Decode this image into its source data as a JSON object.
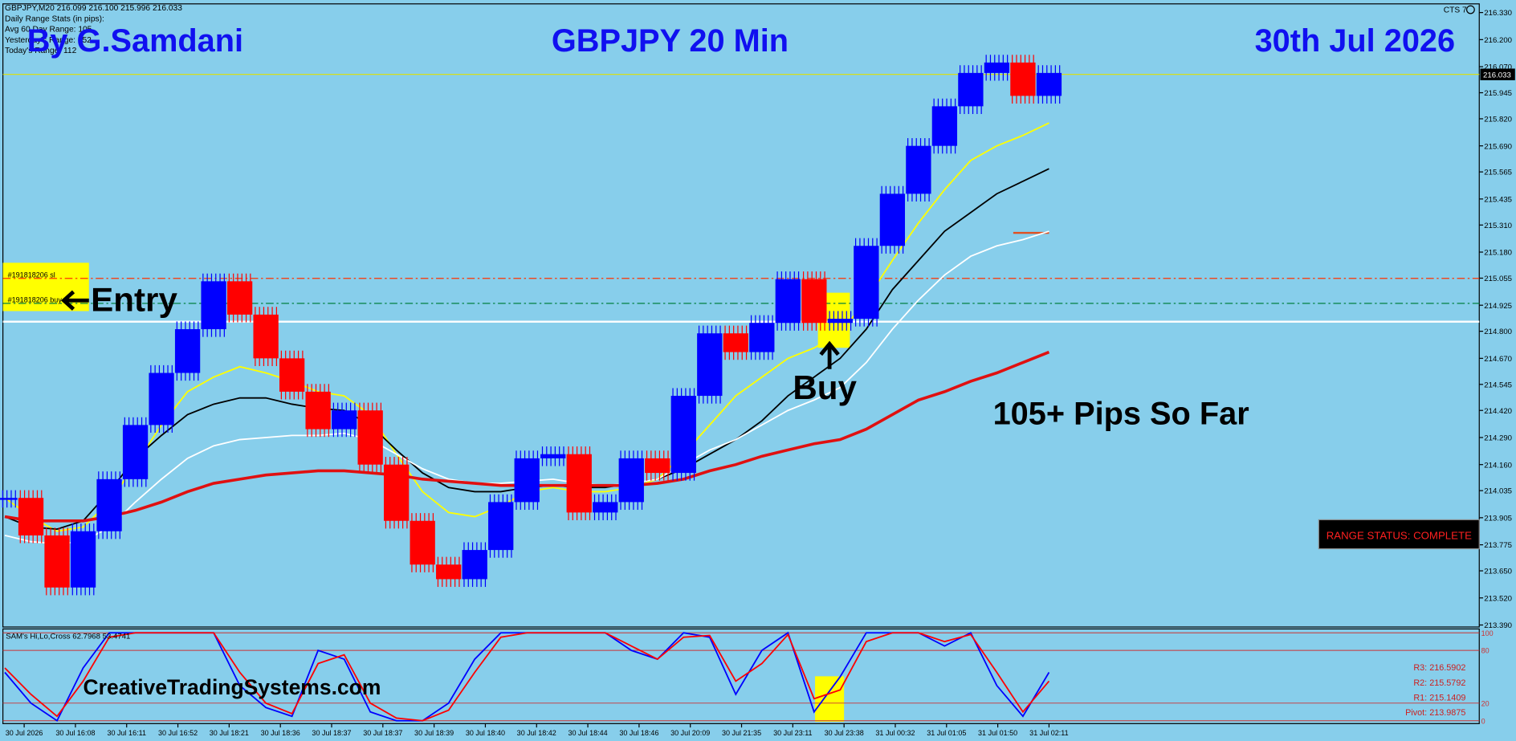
{
  "chart_data": {
    "type": "candlestick",
    "header": "GBPJPY,M20  216.099 216.100 215.996 216.033",
    "info_lines": [
      "Daily Range Stats (in pips):",
      "Avg 60 Day Range: 105",
      "Yesterday's Range: 152",
      "Today's Range: 112"
    ],
    "platform_label": "CTS 7",
    "author": "By G.Samdani",
    "title": "GBPJPY 20 Min",
    "date": "30th Jul 2026",
    "annotations": {
      "entry": "Entry",
      "buy": "Buy",
      "pips": "105+ Pips So Far",
      "website": "CreativeTradingSystems.com",
      "range_status": "RANGE STATUS: COMPLETE",
      "order_sl": "#191818206 sl",
      "order_buy": "#191818206 buy"
    },
    "current_price": 216.033,
    "ylim": [
      213.385,
      216.367
    ],
    "yticks": [
      {
        "value": 213.39,
        "label": "213.390"
      },
      {
        "value": 213.52,
        "label": "213.520"
      },
      {
        "value": 213.65,
        "label": "213.650"
      },
      213.775,
      213.905,
      214.035,
      {
        "value": 214.16,
        "label": "214.160"
      },
      {
        "value": 214.29,
        "label": "214.290"
      },
      {
        "value": 214.42,
        "label": "214.420"
      },
      214.545,
      {
        "value": 214.67,
        "label": "214.670"
      },
      {
        "value": 214.8,
        "label": "214.800"
      },
      214.925,
      215.055,
      {
        "value": 215.18,
        "label": "215.180"
      },
      {
        "value": 215.31,
        "label": "215.310"
      },
      215.435,
      215.565,
      {
        "value": 215.69,
        "label": "215.690"
      },
      {
        "value": 215.82,
        "label": "215.820"
      },
      215.945,
      {
        "value": 216.07,
        "label": "216.070"
      },
      {
        "value": 216.2,
        "label": "216.200"
      },
      {
        "value": 216.33,
        "label": "216.330"
      }
    ],
    "hlines": [
      {
        "value": 215.054,
        "color": "#ff3300",
        "dash": "8 3 2 3"
      },
      {
        "value": 214.934,
        "color": "#008040",
        "dash": "8 3 2 3"
      },
      {
        "value": 214.846,
        "color": "#ffffff",
        "dash": "none"
      }
    ],
    "x_labels": [
      "30 Jul 2026",
      "30 Jul 16:08",
      "30 Jul 16:11",
      "30 Jul 16:52",
      "30 Jul 18:21",
      "30 Jul 18:36",
      "30 Jul 18:37",
      "30 Jul 18:37",
      "30 Jul 18:39",
      "30 Jul 18:40",
      "30 Jul 18:42",
      "30 Jul 18:44",
      "30 Jul 18:46",
      "30 Jul 20:09",
      "30 Jul 21:35",
      "30 Jul 23:11",
      "30 Jul 23:38",
      "31 Jul 00:32",
      "31 Jul 01:05",
      "31 Jul 01:50",
      "31 Jul 02:11"
    ],
    "price": {
      "up_color": "#0000ff",
      "down_color": "#ff0000",
      "values": [
        214.0,
        213.82,
        213.57,
        213.84,
        214.09,
        214.35,
        214.6,
        214.81,
        215.04,
        214.88,
        214.67,
        214.51,
        214.33,
        214.42,
        214.16,
        213.89,
        213.68,
        213.61,
        213.75,
        213.98,
        214.19,
        214.21,
        213.93,
        213.98,
        214.19,
        214.12,
        214.49,
        214.79,
        214.7,
        214.84,
        215.05,
        214.84,
        214.86,
        215.21,
        215.46,
        215.69,
        215.88,
        216.04,
        216.09,
        215.93,
        216.04
      ]
    },
    "series": [
      {
        "color": "#ffff00",
        "width": 1.5,
        "values": [
          214.0,
          213.91,
          213.84,
          213.86,
          213.98,
          214.16,
          214.35,
          214.51,
          214.58,
          214.63,
          214.6,
          214.56,
          214.51,
          214.49,
          214.4,
          214.21,
          214.03,
          213.93,
          213.91,
          213.96,
          214.03,
          214.05,
          214.03,
          214.03,
          214.05,
          214.09,
          214.21,
          214.35,
          214.49,
          214.58,
          214.67,
          214.72,
          214.79,
          214.95,
          215.14,
          215.32,
          215.48,
          215.62,
          215.69,
          215.74,
          215.8
        ]
      },
      {
        "color": "#000000",
        "width": 1.5,
        "values": [
          213.91,
          213.86,
          213.85,
          213.89,
          214.03,
          214.19,
          214.3,
          214.4,
          214.45,
          214.48,
          214.48,
          214.45,
          214.43,
          214.42,
          214.35,
          214.23,
          214.12,
          214.05,
          214.03,
          214.03,
          214.05,
          214.06,
          214.05,
          214.05,
          214.07,
          214.09,
          214.14,
          214.21,
          214.28,
          214.37,
          214.49,
          214.58,
          214.67,
          214.81,
          215.0,
          215.14,
          215.28,
          215.37,
          215.46,
          215.52,
          215.58
        ]
      },
      {
        "color": "#ffffff",
        "width": 1.5,
        "values": [
          213.82,
          213.79,
          213.78,
          213.79,
          213.86,
          213.98,
          214.09,
          214.19,
          214.25,
          214.28,
          214.29,
          214.3,
          214.3,
          214.31,
          214.28,
          214.21,
          214.14,
          214.09,
          214.07,
          214.07,
          214.08,
          214.09,
          214.07,
          214.06,
          214.07,
          214.09,
          214.16,
          214.23,
          214.28,
          214.35,
          214.42,
          214.47,
          214.53,
          214.65,
          214.81,
          214.95,
          215.07,
          215.16,
          215.21,
          215.24,
          215.28
        ]
      },
      {
        "color": "#e01010",
        "width": 3,
        "values": [
          213.91,
          213.89,
          213.89,
          213.89,
          213.91,
          213.94,
          213.98,
          214.03,
          214.07,
          214.09,
          214.11,
          214.12,
          214.13,
          214.13,
          214.12,
          214.11,
          214.09,
          214.08,
          214.07,
          214.06,
          214.06,
          214.06,
          214.06,
          214.06,
          214.06,
          214.07,
          214.09,
          214.13,
          214.16,
          214.2,
          214.23,
          214.26,
          214.28,
          214.33,
          214.4,
          214.47,
          214.51,
          214.56,
          214.6,
          214.65,
          214.7
        ]
      }
    ],
    "oscillator": {
      "title": "SAM's Hi,Lo,Cross 62.7968 53.4741",
      "ylim": [
        0,
        100
      ],
      "yticks": [
        0,
        20,
        80,
        100
      ],
      "level_color": "#cc3333",
      "pivots": [
        "R3: 216.5902",
        "R2: 215.5792",
        "R1: 215.1409",
        "Pivot: 213.9875"
      ],
      "series": [
        {
          "color": "#0000ff",
          "values": [
            55,
            20,
            0,
            60,
            100,
            100,
            100,
            100,
            100,
            40,
            15,
            5,
            80,
            70,
            10,
            0,
            0,
            20,
            70,
            100,
            100,
            100,
            100,
            100,
            80,
            70,
            100,
            95,
            30,
            80,
            100,
            10,
            50,
            100,
            100,
            100,
            85,
            100,
            40,
            5,
            55
          ]
        },
        {
          "color": "#ff0000",
          "values": [
            60,
            30,
            5,
            45,
            95,
            100,
            100,
            100,
            100,
            55,
            20,
            8,
            65,
            75,
            20,
            3,
            0,
            12,
            55,
            95,
            100,
            100,
            100,
            100,
            85,
            70,
            95,
            97,
            45,
            65,
            98,
            25,
            35,
            90,
            100,
            100,
            90,
            98,
            55,
            10,
            45
          ]
        }
      ]
    }
  }
}
